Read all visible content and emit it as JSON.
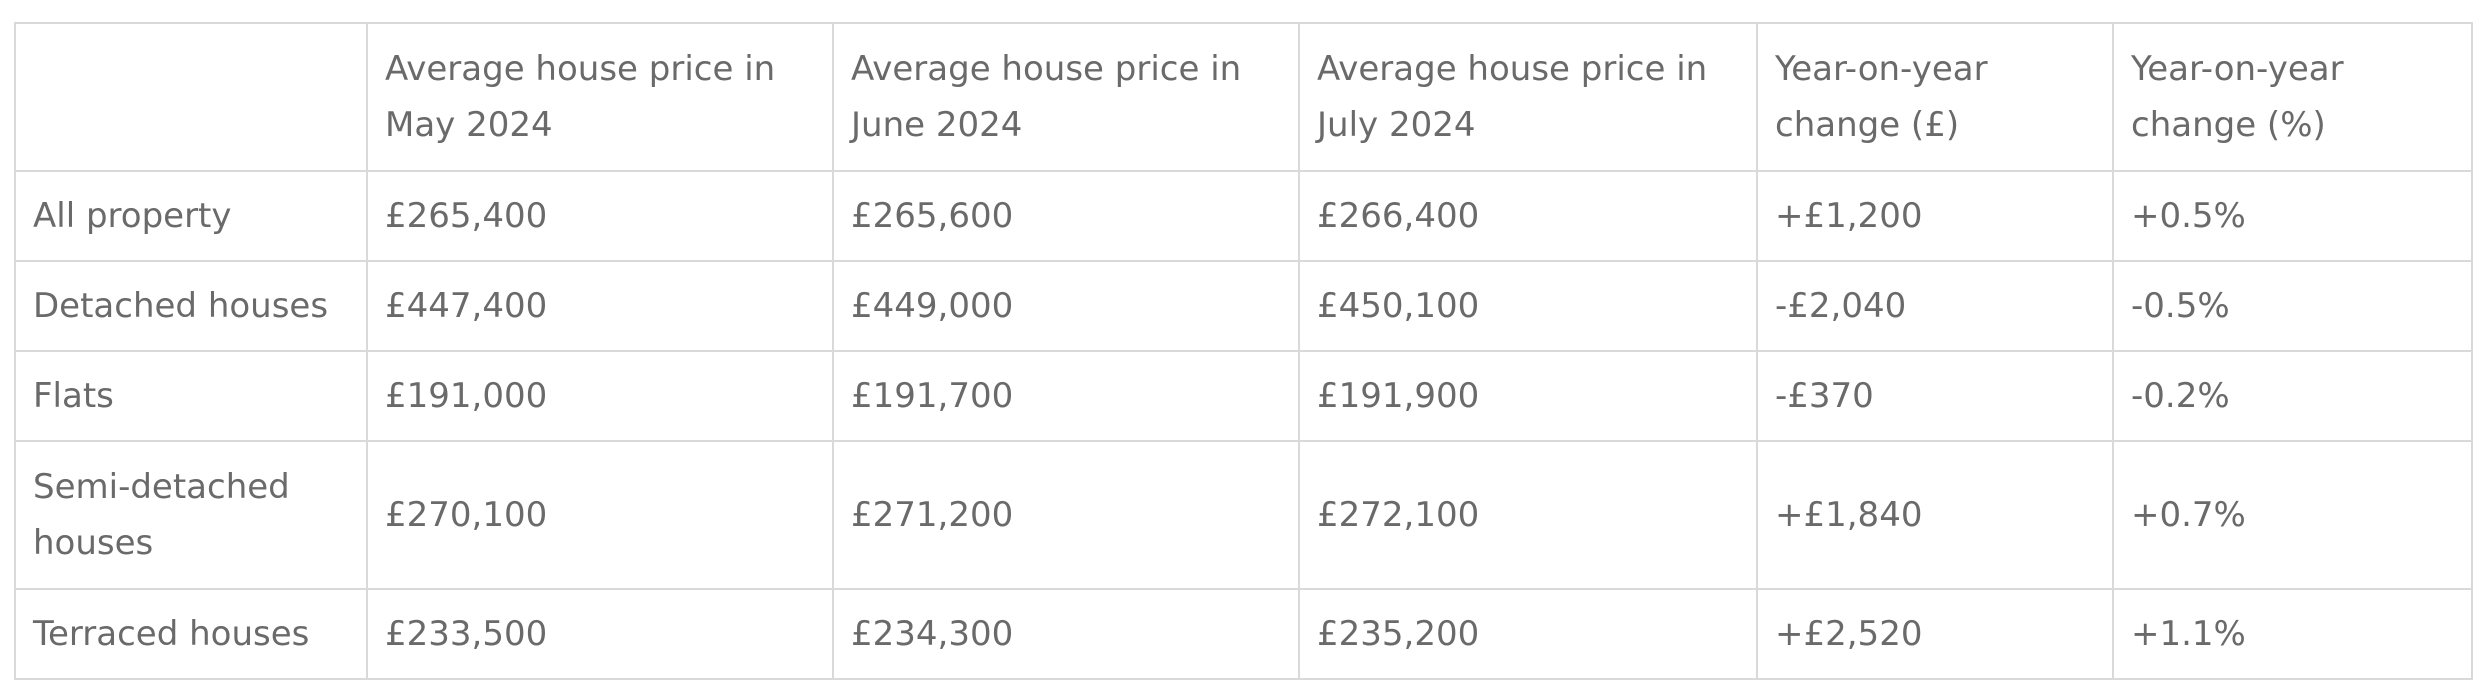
{
  "table": {
    "headers": [
      "",
      "Average house price in May 2024",
      "Average house price in June 2024",
      "Average house price in July 2024",
      "Year-on-year change (£)",
      "Year-on-year change (%)"
    ],
    "rows": [
      {
        "label": "All property",
        "may": "£265,400",
        "june": "£265,600",
        "july": "£266,400",
        "change_gbp": "+£1,200",
        "change_pct": "+0.5%"
      },
      {
        "label": "Detached houses",
        "may": "£447,400",
        "june": "£449,000",
        "july": "£450,100",
        "change_gbp": "-£2,040",
        "change_pct": "-0.5%"
      },
      {
        "label": "Flats",
        "may": "£191,000",
        "june": "£191,700",
        "july": "£191,900",
        "change_gbp": "-£370",
        "change_pct": "-0.2%"
      },
      {
        "label": "Semi-detached houses",
        "may": "£270,100",
        "june": "£271,200",
        "july": "£272,100",
        "change_gbp": "+£1,840",
        "change_pct": "+0.7%"
      },
      {
        "label": "Terraced houses",
        "may": "£233,500",
        "june": "£234,300",
        "july": "£235,200",
        "change_gbp": "+£2,520",
        "change_pct": "+1.1%"
      }
    ]
  }
}
